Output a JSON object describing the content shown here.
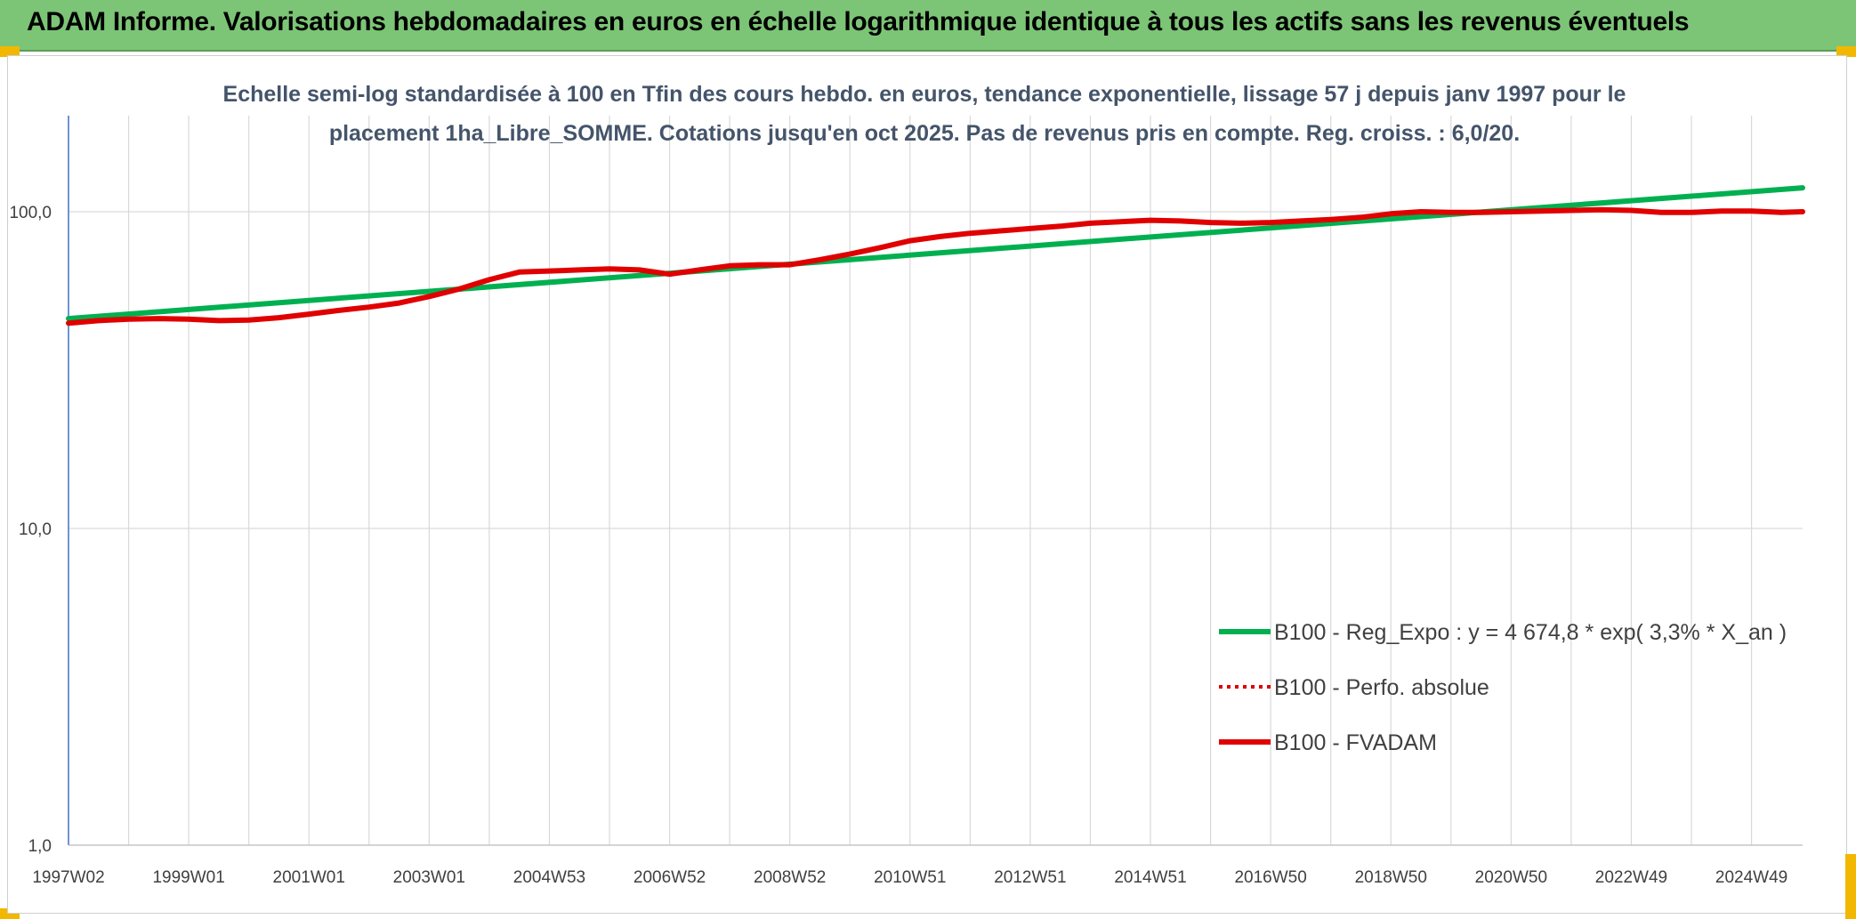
{
  "header": {
    "title": "ADAM Informe. Valorisations hebdomadaires en euros en échelle logarithmique identique à tous les actifs sans les revenus éventuels"
  },
  "chart_data": {
    "type": "line",
    "subtitle_lines": [
      "Echelle semi-log standardisée à 100 en Tfin des cours hebdo. en euros, tendance exponentielle, lissage 57 j depuis janv 1997 pour le",
      "placement 1ha_Libre_SOMME. Cotations jusqu'en oct 2025. Pas de revenus pris en compte. Reg. croiss. : 6,0/20."
    ],
    "y_scale": "log",
    "ylim": [
      1,
      180
    ],
    "y_ticks": [
      {
        "value": 1,
        "label": "1,0"
      },
      {
        "value": 10,
        "label": "10,0"
      },
      {
        "value": 100,
        "label": "100,0"
      }
    ],
    "xlim": [
      1997.0,
      2025.85
    ],
    "x_ticks": [
      {
        "x": 1997.0,
        "label": "1997W02"
      },
      {
        "x": 1999.0,
        "label": "1999W01"
      },
      {
        "x": 2001.0,
        "label": "2001W01"
      },
      {
        "x": 2003.0,
        "label": "2003W01"
      },
      {
        "x": 2005.0,
        "label": "2004W53"
      },
      {
        "x": 2007.0,
        "label": "2006W52"
      },
      {
        "x": 2009.0,
        "label": "2008W52"
      },
      {
        "x": 2011.0,
        "label": "2010W51"
      },
      {
        "x": 2013.0,
        "label": "2012W51"
      },
      {
        "x": 2015.0,
        "label": "2014W51"
      },
      {
        "x": 2017.0,
        "label": "2016W50"
      },
      {
        "x": 2019.0,
        "label": "2018W50"
      },
      {
        "x": 2021.0,
        "label": "2020W50"
      },
      {
        "x": 2023.0,
        "label": "2022W49"
      },
      {
        "x": 2025.0,
        "label": "2024W49"
      }
    ],
    "grid": true,
    "legend_position": "right",
    "series": [
      {
        "name": "B100 - Reg_Expo : y = 4 674,8 * exp( 3,3% *  X_an )",
        "color": "#00b050",
        "style": "solid",
        "points": [
          [
            1997.0,
            46.0
          ],
          [
            2025.85,
            119.0
          ]
        ]
      },
      {
        "name": "B100 - Perfo. absolue",
        "color": "#e00000",
        "style": "dotted",
        "points": []
      },
      {
        "name": "B100 - FVADAM",
        "color": "#e00000",
        "style": "solid",
        "points": [
          [
            1997.0,
            44.5
          ],
          [
            1997.5,
            45.3
          ],
          [
            1998.0,
            45.8
          ],
          [
            1998.5,
            46.0
          ],
          [
            1999.0,
            45.8
          ],
          [
            1999.5,
            45.3
          ],
          [
            2000.0,
            45.5
          ],
          [
            2000.5,
            46.3
          ],
          [
            2001.0,
            47.5
          ],
          [
            2001.5,
            48.8
          ],
          [
            2002.0,
            50.0
          ],
          [
            2002.5,
            51.5
          ],
          [
            2003.0,
            54.0
          ],
          [
            2003.5,
            57.0
          ],
          [
            2004.0,
            61.0
          ],
          [
            2004.5,
            64.5
          ],
          [
            2005.0,
            65.0
          ],
          [
            2005.5,
            65.5
          ],
          [
            2006.0,
            66.0
          ],
          [
            2006.5,
            65.5
          ],
          [
            2007.0,
            63.5
          ],
          [
            2007.5,
            65.5
          ],
          [
            2008.0,
            67.5
          ],
          [
            2008.5,
            68.0
          ],
          [
            2009.0,
            68.0
          ],
          [
            2009.5,
            70.5
          ],
          [
            2010.0,
            73.5
          ],
          [
            2010.5,
            77.0
          ],
          [
            2011.0,
            81.0
          ],
          [
            2011.5,
            83.5
          ],
          [
            2012.0,
            85.5
          ],
          [
            2012.5,
            87.0
          ],
          [
            2013.0,
            88.5
          ],
          [
            2013.5,
            90.0
          ],
          [
            2014.0,
            92.0
          ],
          [
            2014.5,
            93.0
          ],
          [
            2015.0,
            94.0
          ],
          [
            2015.5,
            93.5
          ],
          [
            2016.0,
            92.5
          ],
          [
            2016.5,
            92.0
          ],
          [
            2017.0,
            92.5
          ],
          [
            2017.5,
            93.5
          ],
          [
            2018.0,
            94.5
          ],
          [
            2018.5,
            96.0
          ],
          [
            2019.0,
            98.5
          ],
          [
            2019.5,
            100.0
          ],
          [
            2020.0,
            99.5
          ],
          [
            2020.5,
            99.5
          ],
          [
            2021.0,
            100.0
          ],
          [
            2021.5,
            100.5
          ],
          [
            2022.0,
            101.0
          ],
          [
            2022.5,
            101.5
          ],
          [
            2023.0,
            101.0
          ],
          [
            2023.5,
            99.5
          ],
          [
            2024.0,
            99.5
          ],
          [
            2024.5,
            100.5
          ],
          [
            2025.0,
            100.5
          ],
          [
            2025.5,
            99.5
          ],
          [
            2025.85,
            100.0
          ]
        ]
      }
    ]
  }
}
